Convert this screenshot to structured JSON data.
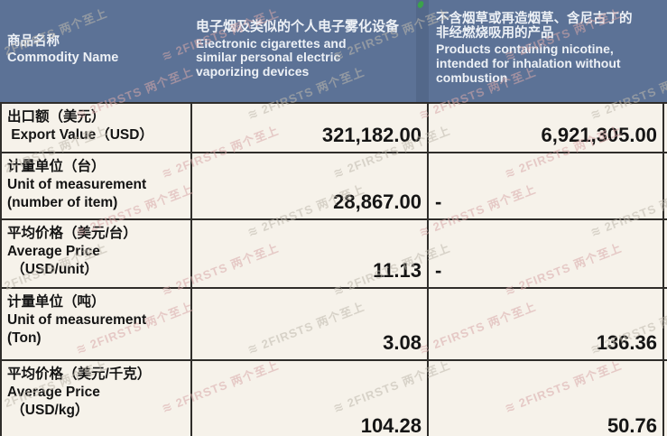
{
  "chart_data": {
    "type": "table",
    "title": "",
    "columns": [
      "商品名称 Commodity Name",
      "电子烟及类似的个人电子雾化设备 Electronic cigarettes and similar personal electric vaporizing devices",
      "不含烟草或再造烟草、含尼古丁的非经燃烧吸用的产品 Products containing nicotine, intended for inhalation without combustion"
    ],
    "rows": [
      [
        "出口额（美元） Export Value（USD）",
        321182.0,
        6921305.0
      ],
      [
        "计量单位（台） Unit of measurement (number of item)",
        28867.0,
        null
      ],
      [
        "平均价格（美元/台） Average Price（USD/unit）",
        11.13,
        null
      ],
      [
        "计量单位（吨） Unit of measurement (Ton)",
        3.08,
        136.36
      ],
      [
        "平均价格（美元/千克） Average Price（USD/kg）",
        104.28,
        50.76
      ]
    ]
  },
  "header": {
    "col1": {
      "zh": "商品名称",
      "en": "Commodity Name"
    },
    "col2": {
      "zh": "电子烟及类似的个人电子雾化设备",
      "en": "Electronic cigarettes and\nsimilar personal electric\nvaporizing devices"
    },
    "col3": {
      "zh": "不含烟草或再造烟草、含尼古丁的\n非经燃烧吸用的产品",
      "en": "Products containing nicotine,\nintended for inhalation without\ncombustion"
    }
  },
  "rows": [
    {
      "zh": "出口额（美元）",
      "en1": " Export Value（USD）",
      "en2": "",
      "v1": "321,182.00",
      "v2": "6,921,305.00"
    },
    {
      "zh": "计量单位（台）",
      "en1": "Unit of measurement",
      "en2": "(number of item)",
      "v1": "28,867.00",
      "v2": "-"
    },
    {
      "zh": "平均价格（美元/台）",
      "en1": "Average Price",
      "en2": " （USD/unit）",
      "v1": "11.13",
      "v2": "-"
    },
    {
      "zh": "计量单位（吨）",
      "en1": "Unit of measurement",
      "en2": "(Ton)",
      "v1": "3.08",
      "v2": "136.36"
    },
    {
      "zh": "平均价格（美元/千克）",
      "en1": "Average Price",
      "en2": " （USD/kg）",
      "v1": "104.28",
      "v2": "50.76"
    }
  ],
  "watermark": {
    "logo_glyph": "≋",
    "text": "2FIRSTS 两个至上"
  },
  "colors": {
    "header_bg": "#5c7296",
    "header_text": "#edf1f6",
    "body_bg": "#f6f2ea",
    "border": "#2f2d2a",
    "value_text": "#151515",
    "green_dot": "#3ba24b",
    "watermark_pink": "#d8a9a9",
    "watermark_gray": "#bfb9ad"
  }
}
